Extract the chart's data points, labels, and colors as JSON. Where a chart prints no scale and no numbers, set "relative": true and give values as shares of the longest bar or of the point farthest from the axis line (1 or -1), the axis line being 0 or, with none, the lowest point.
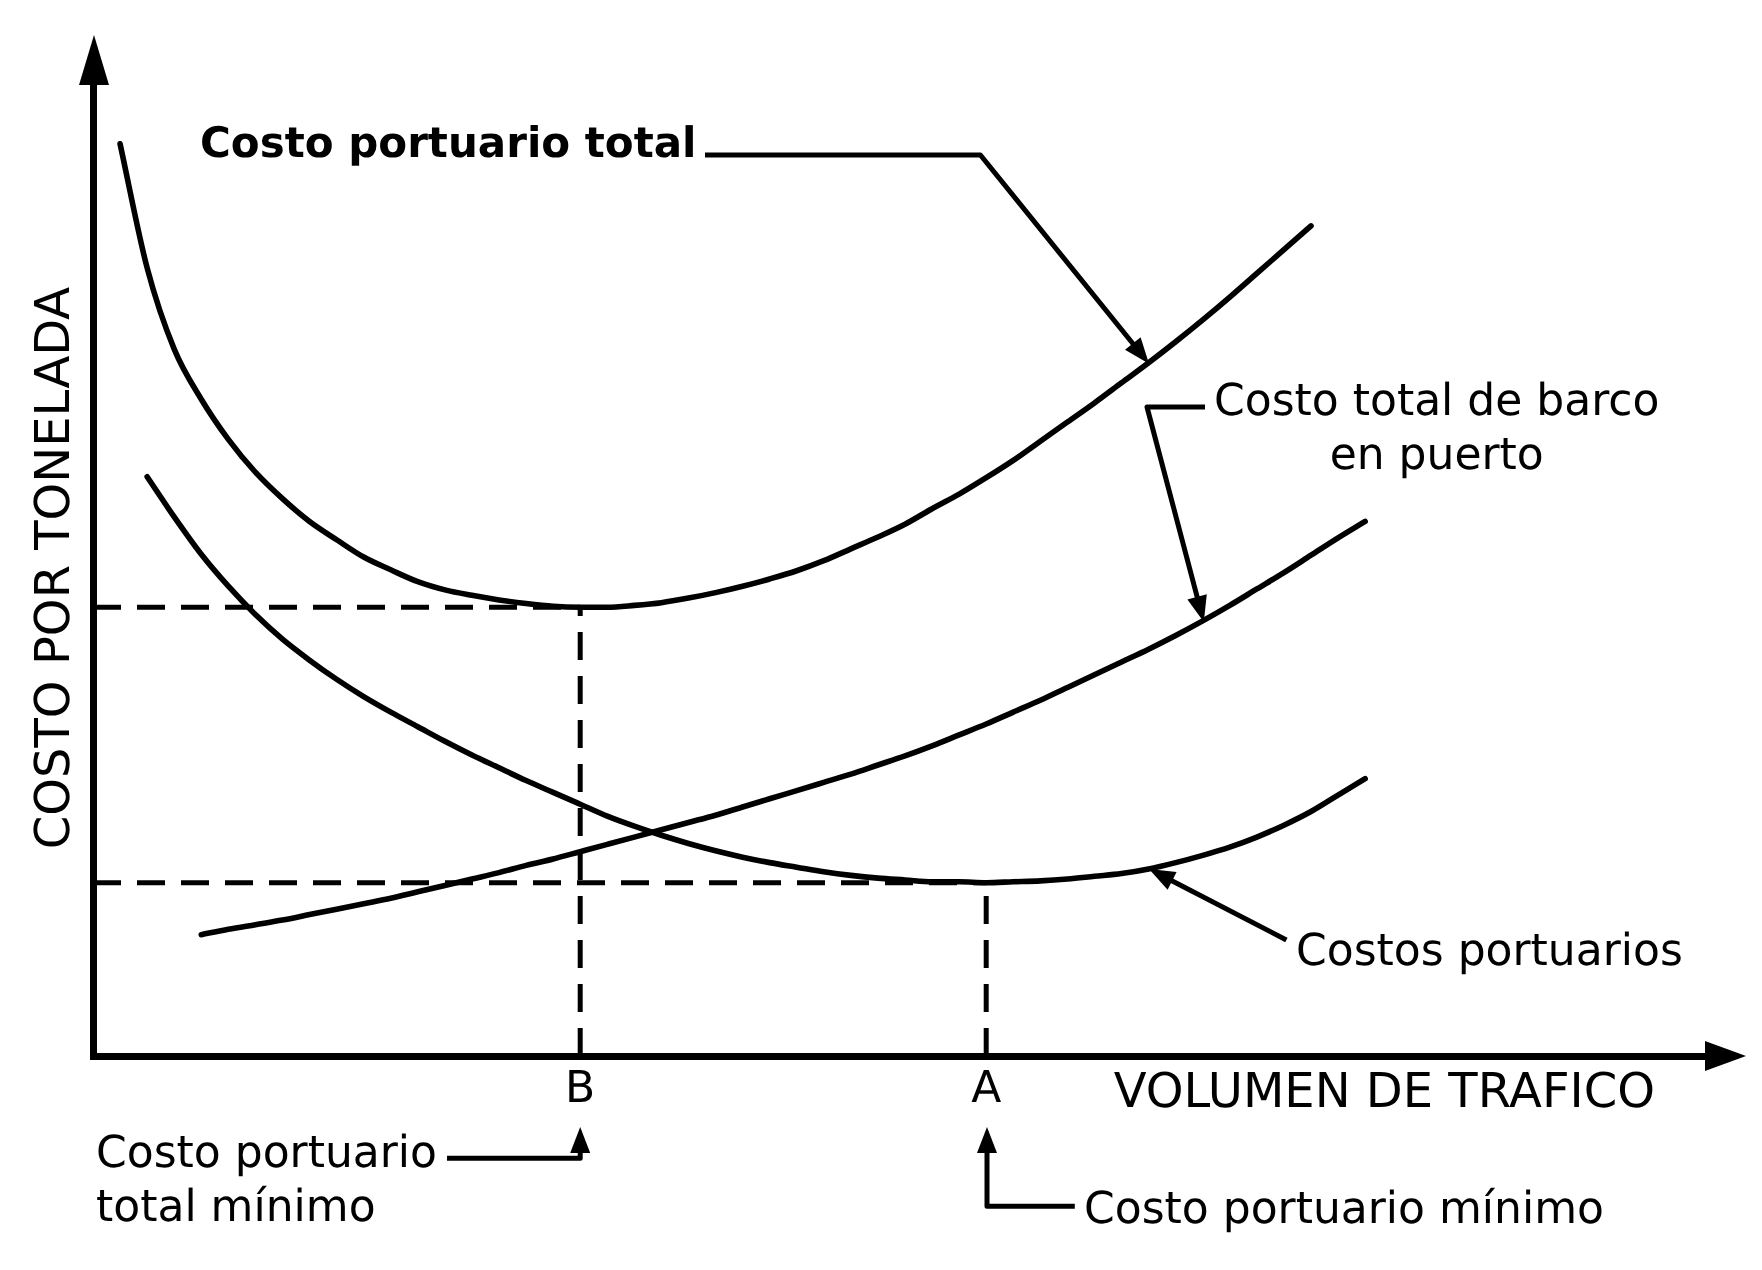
{
  "chart_data": {
    "type": "line",
    "xlabel": "VOLUMEN DE TRAFICO",
    "ylabel": "COSTO POR TONELADA",
    "relative": true,
    "legend": false,
    "grid": false,
    "marker": "none",
    "categories": [
      null,
      null,
      null,
      null,
      null,
      null,
      null,
      null,
      null,
      null,
      null,
      null,
      null,
      null,
      null,
      null,
      null,
      null,
      "B",
      null,
      null,
      null,
      null,
      null,
      null,
      null,
      null,
      null,
      null,
      null,
      null,
      null,
      null,
      "A",
      null,
      null,
      null,
      null,
      null,
      null,
      null,
      null,
      null,
      null,
      null,
      null,
      null,
      null,
      null,
      null,
      null,
      null,
      null,
      null,
      null,
      null,
      null,
      null,
      null,
      null,
      null
    ],
    "series": [
      {
        "name": "Costo portuario total",
        "color": "#000000",
        "values": [
          null,
          1,
          0.864,
          0.775,
          0.72,
          0.676,
          0.64,
          0.611,
          0.586,
          0.566,
          0.547,
          0.533,
          0.52,
          0.511,
          0.505,
          0.5,
          0.496,
          0.493,
          0.492,
          0.492,
          0.494,
          0.497,
          0.502,
          0.508,
          0.515,
          0.523,
          0.532,
          0.543,
          0.556,
          0.569,
          0.583,
          0.6,
          0.616,
          0.634,
          0.653,
          0.674,
          0.695,
          0.716,
          0.738,
          0.76,
          0.783,
          0.807,
          0.832,
          0.858,
          0.884,
          0.91,
          null,
          null,
          null,
          null,
          null,
          null,
          null,
          null,
          null,
          null,
          null,
          null,
          null,
          null,
          null
        ]
      },
      {
        "name": "Costo total de barco en puerto",
        "color": "#000000",
        "values": [
          null,
          null,
          null,
          null,
          0.133,
          0.139,
          0.144,
          0.149,
          0.155,
          0.161,
          0.167,
          0.173,
          0.18,
          0.187,
          0.194,
          0.201,
          0.209,
          0.216,
          0.224,
          0.232,
          0.24,
          0.248,
          0.256,
          0.264,
          0.273,
          0.282,
          0.291,
          0.3,
          0.309,
          0.319,
          0.329,
          0.34,
          0.352,
          0.364,
          0.377,
          0.39,
          0.404,
          0.418,
          0.432,
          0.446,
          0.461,
          0.477,
          0.494,
          0.512,
          0.53,
          0.549,
          0.568,
          0.586,
          null,
          null,
          null,
          null,
          null,
          null,
          null,
          null,
          null,
          null,
          null,
          null,
          null
        ]
      },
      {
        "name": "Costos portuarios",
        "color": "#000000",
        "values": [
          null,
          null,
          0.635,
          0.591,
          0.55,
          0.515,
          0.484,
          0.457,
          0.434,
          0.413,
          0.394,
          0.377,
          0.361,
          0.345,
          0.33,
          0.316,
          0.302,
          0.289,
          0.276,
          0.263,
          0.252,
          0.242,
          0.233,
          0.225,
          0.218,
          0.212,
          0.207,
          0.202,
          0.198,
          0.195,
          0.193,
          0.191,
          0.191,
          0.19,
          0.191,
          0.192,
          0.194,
          0.197,
          0.2,
          0.205,
          0.212,
          0.22,
          0.229,
          0.24,
          0.253,
          0.268,
          0.286,
          0.304,
          null,
          null,
          null,
          null,
          null,
          null,
          null,
          null,
          null,
          null,
          null,
          null,
          null
        ]
      }
    ],
    "ref_lines": [
      {
        "axis": "y",
        "value": 0.492,
        "line_style": "dashed"
      },
      {
        "axis": "x",
        "value": "B",
        "line_style": "dashed"
      },
      {
        "axis": "y",
        "value": 0.19,
        "line_style": "dashed"
      },
      {
        "axis": "x",
        "value": "A",
        "line_style": "dashed"
      }
    ],
    "annotations": [
      "Costo portuario total mínimo",
      "Costo portuario mínimo"
    ]
  }
}
